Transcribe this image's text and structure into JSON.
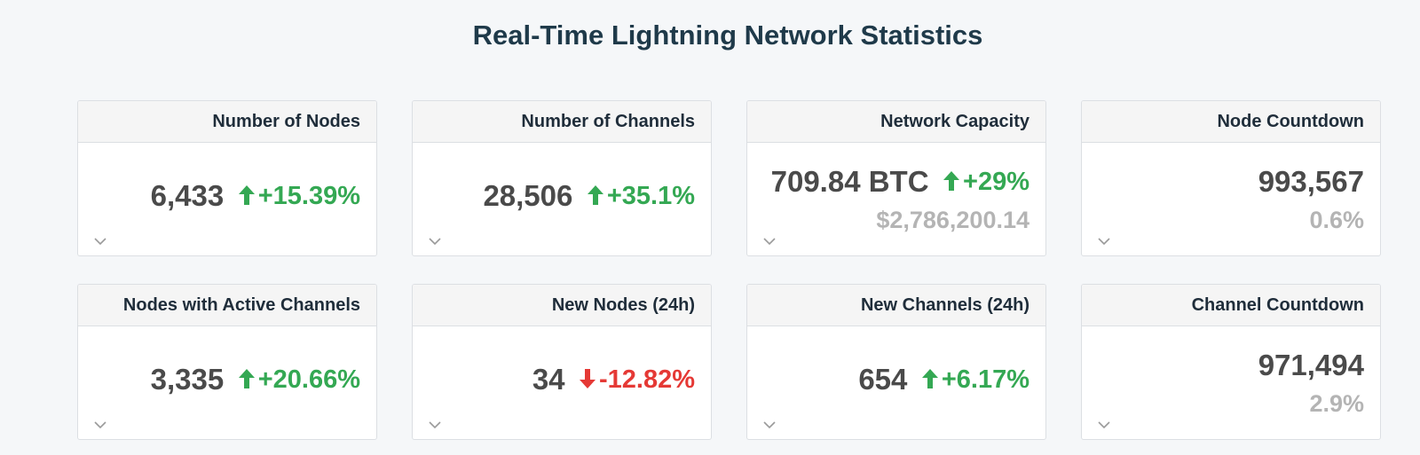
{
  "page": {
    "title": "Real-Time Lightning Network Statistics"
  },
  "colors": {
    "positive": "#34a853",
    "negative": "#e53935",
    "value": "#4a4a4a",
    "muted": "#b4b4b4"
  },
  "cards": [
    {
      "title": "Number of Nodes",
      "value": "6,433",
      "change": "+15.39%",
      "trend": "up",
      "sub": ""
    },
    {
      "title": "Number of Channels",
      "value": "28,506",
      "change": "+35.1%",
      "trend": "up",
      "sub": ""
    },
    {
      "title": "Network Capacity",
      "value": "709.84 BTC",
      "change": "+29%",
      "trend": "up",
      "sub": "$2,786,200.14"
    },
    {
      "title": "Node Countdown",
      "value": "993,567",
      "change": "",
      "trend": "none",
      "sub": "0.6%"
    },
    {
      "title": "Nodes with Active Channels",
      "value": "3,335",
      "change": "+20.66%",
      "trend": "up",
      "sub": ""
    },
    {
      "title": "New Nodes (24h)",
      "value": "34",
      "change": "-12.82%",
      "trend": "down",
      "sub": ""
    },
    {
      "title": "New Channels (24h)",
      "value": "654",
      "change": "+6.17%",
      "trend": "up",
      "sub": ""
    },
    {
      "title": "Channel Countdown",
      "value": "971,494",
      "change": "",
      "trend": "none",
      "sub": "2.9%"
    }
  ]
}
